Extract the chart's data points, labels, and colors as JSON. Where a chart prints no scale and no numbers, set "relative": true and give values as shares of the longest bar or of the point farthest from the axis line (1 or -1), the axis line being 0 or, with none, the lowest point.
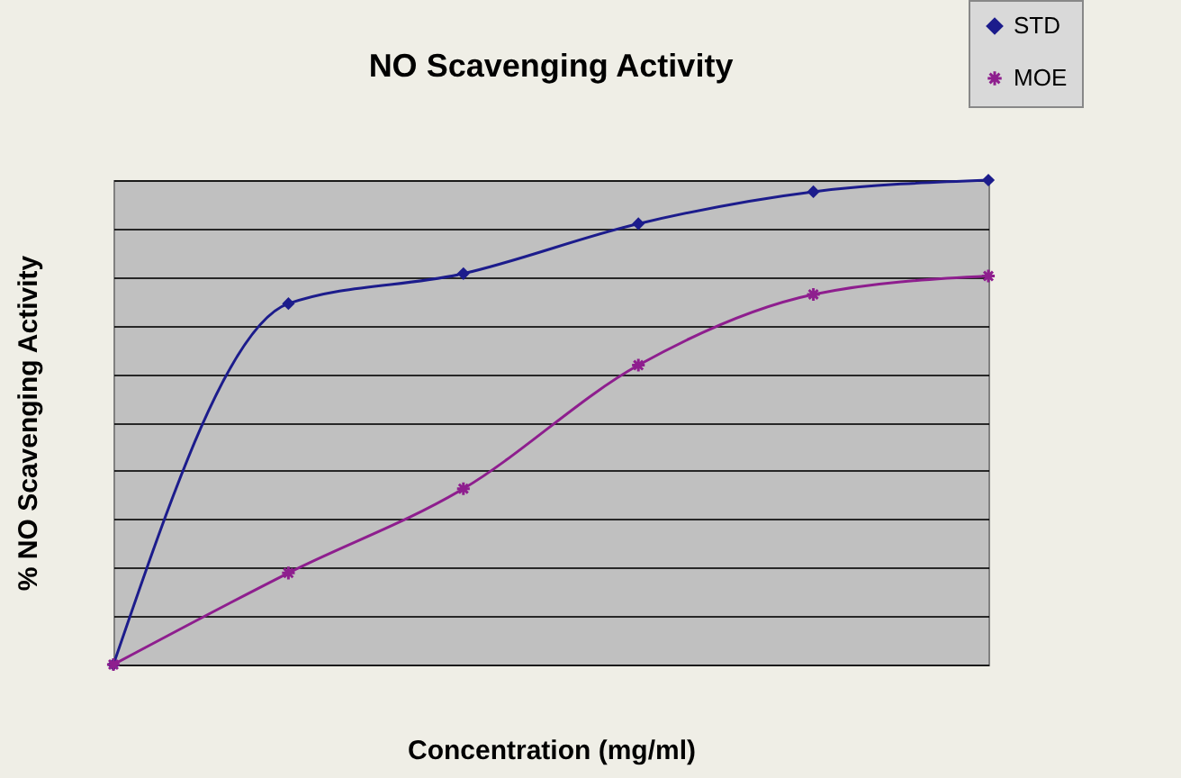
{
  "chart_data": {
    "type": "line",
    "title": "NO Scavenging Activity",
    "xlabel": "Concentration (mg/ml)",
    "ylabel": "% NO Scavenging Activity",
    "categories": [
      null,
      null,
      null,
      null,
      null,
      null
    ],
    "relative": true,
    "grid": "y",
    "legend": "top right",
    "line_style": "solid",
    "series": [
      {
        "name": "STD",
        "color": "#1c1c8c",
        "marker": "diamond",
        "values": [
          0,
          0.745,
          0.807,
          0.91,
          0.976,
          1
        ]
      },
      {
        "name": "MOE",
        "color": "#8e1e8e",
        "marker": "cross",
        "values": [
          0,
          0.189,
          0.363,
          0.618,
          0.764,
          0.802
        ]
      }
    ]
  }
}
